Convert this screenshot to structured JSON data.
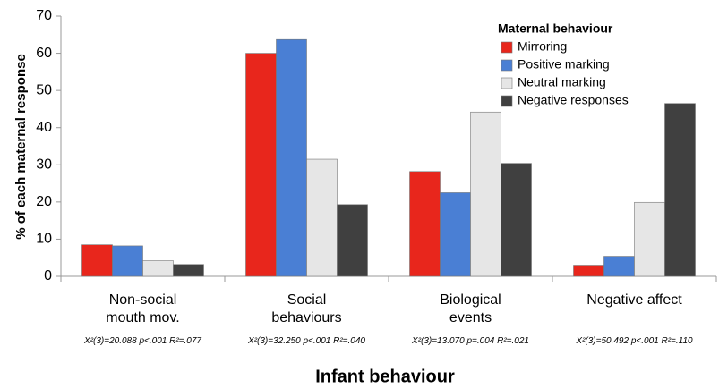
{
  "chart_data": {
    "type": "bar",
    "categories": [
      "Non-social\nmouth mov.",
      "Social\nbehaviours",
      "Biological\nevents",
      "Negative affect"
    ],
    "annotations": [
      "X²(3)=20.088 p<.001 R²=.077",
      "X²(3)=32.250 p<.001 R²=.040",
      "X²(3)=13.070 p=.004 R²=.021",
      "X²(3)=50.492 p<.001 R²=.110"
    ],
    "series": [
      {
        "name": "Mirroring",
        "color": "#e8261c",
        "values": [
          8.5,
          60,
          28.2,
          3
        ]
      },
      {
        "name": "Positive marking",
        "color": "#4a7fd4",
        "values": [
          8.2,
          63.7,
          22.5,
          5.4
        ]
      },
      {
        "name": "Neutral marking",
        "color": "#e6e6e6",
        "values": [
          4.2,
          31.5,
          44.2,
          19.9
        ]
      },
      {
        "name": "Negative responses",
        "color": "#404040",
        "values": [
          3.2,
          19.3,
          30.4,
          46.5
        ]
      }
    ],
    "legend_title": "Maternal behaviour",
    "xlabel": "Infant behaviour",
    "ylabel": "% of each maternal response",
    "ylim": [
      0,
      70
    ],
    "yticks": [
      0,
      10,
      20,
      30,
      40,
      50,
      60,
      70
    ],
    "grid": false,
    "legend": "upper right"
  }
}
